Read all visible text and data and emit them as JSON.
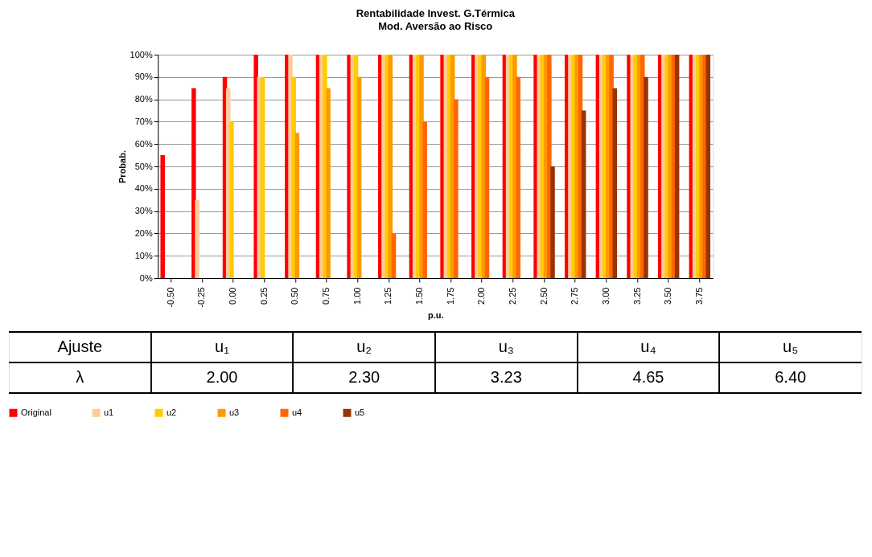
{
  "chart_data": {
    "type": "bar",
    "title": "Rentabilidade Invest. G.Térmica",
    "subtitle": "Mod. Aversão ao Risco",
    "xlabel": "p.u.",
    "ylabel": "Probab.",
    "categories": [
      "-0.50",
      "-0.25",
      "0.00",
      "0.25",
      "0.50",
      "0.75",
      "1.00",
      "1.25",
      "1.50",
      "1.75",
      "2.00",
      "2.25",
      "2.50",
      "2.75",
      "3.00",
      "3.25",
      "3.50",
      "3.75"
    ],
    "series": [
      {
        "name": "Original",
        "color": "#ff0000",
        "values": [
          55,
          85,
          90,
          100,
          100,
          100,
          100,
          100,
          100,
          100,
          100,
          100,
          100,
          100,
          100,
          100,
          100,
          100
        ]
      },
      {
        "name": "u1",
        "color": "#ffcc99",
        "values": [
          0,
          35,
          85,
          90,
          100,
          100,
          100,
          100,
          100,
          100,
          100,
          100,
          100,
          100,
          100,
          100,
          100,
          100
        ]
      },
      {
        "name": "u2",
        "color": "#ffcc00",
        "values": [
          0,
          0,
          70,
          90,
          90,
          100,
          100,
          100,
          100,
          100,
          100,
          100,
          100,
          100,
          100,
          100,
          100,
          100
        ]
      },
      {
        "name": "u3",
        "color": "#ff9900",
        "values": [
          0,
          0,
          0,
          0,
          65,
          85,
          90,
          100,
          100,
          100,
          100,
          100,
          100,
          100,
          100,
          100,
          100,
          100
        ]
      },
      {
        "name": "u4",
        "color": "#ff6600",
        "values": [
          0,
          0,
          0,
          0,
          0,
          0,
          0,
          20,
          70,
          80,
          90,
          90,
          100,
          100,
          100,
          100,
          100,
          100
        ]
      },
      {
        "name": "u5",
        "color": "#993300",
        "values": [
          0,
          0,
          0,
          0,
          0,
          0,
          0,
          0,
          0,
          0,
          0,
          0,
          50,
          75,
          85,
          90,
          100,
          100
        ]
      }
    ],
    "ylim": [
      0,
      100
    ],
    "yticks": [
      {
        "value": 0,
        "label": "0%"
      },
      {
        "value": 10,
        "label": "10%"
      },
      {
        "value": 20,
        "label": "20%"
      },
      {
        "value": 30,
        "label": "30%"
      },
      {
        "value": 40,
        "label": "40%"
      },
      {
        "value": 50,
        "label": "50%"
      },
      {
        "value": 60,
        "label": "60%"
      },
      {
        "value": 70,
        "label": "70%"
      },
      {
        "value": 80,
        "label": "80%"
      },
      {
        "value": 90,
        "label": "90%"
      },
      {
        "value": 100,
        "label": "100%"
      }
    ],
    "grid": "y",
    "legend": "bottom",
    "annotations": [
      "Ajuste",
      "u₁",
      "u₂",
      "u₃",
      "u₄",
      "u₅",
      "λ",
      "2.00",
      "2.30",
      "3.23",
      "4.65",
      "6.40"
    ]
  }
}
